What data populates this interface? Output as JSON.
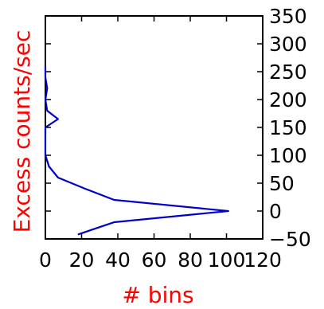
{
  "chart_data": {
    "type": "line",
    "orientation": "horizontal-value",
    "xlabel": "# bins",
    "ylabel": "Excess counts/sec",
    "xlim": [
      0,
      120
    ],
    "ylim": [
      -50,
      350
    ],
    "x_ticks": [
      0,
      20,
      40,
      60,
      80,
      100,
      120
    ],
    "y_ticks": [
      -50,
      0,
      50,
      100,
      150,
      200,
      250,
      300,
      350
    ],
    "y_tick_side": "right",
    "grid": false,
    "label_color": "#ff0000",
    "series_color": "#0000cc",
    "series": [
      {
        "x": [
          18,
          38,
          101,
          38,
          22,
          7,
          2,
          1,
          0,
          0,
          0,
          0,
          7,
          1,
          0,
          1,
          0,
          0,
          0
        ],
        "y": [
          -42,
          -20,
          0,
          20,
          40,
          60,
          80,
          90,
          100,
          120,
          140,
          150,
          165,
          180,
          200,
          220,
          240,
          250,
          260
        ]
      }
    ]
  }
}
